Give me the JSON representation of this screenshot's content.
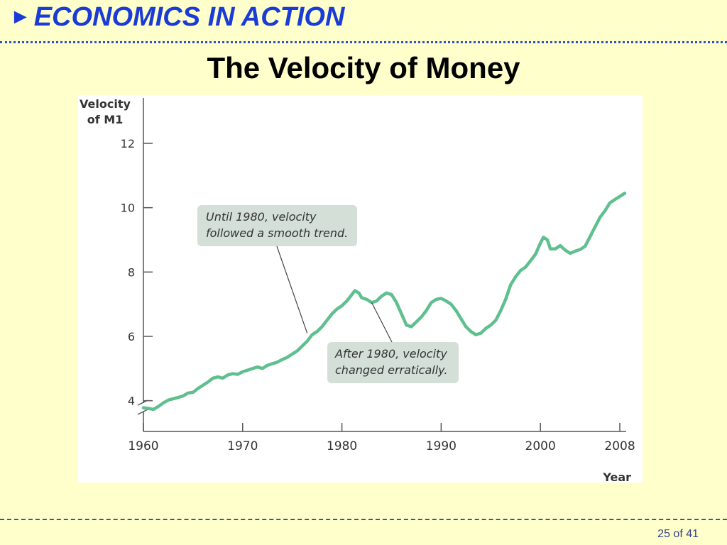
{
  "header": {
    "arrow": "►",
    "text": "ECONOMICS IN ACTION"
  },
  "slide_title": "The Velocity of Money",
  "page_indicator": "25 of 41",
  "colors": {
    "series": "#5fbf8f",
    "header_blue": "#1a3bd6",
    "callout_bg": "#d4dfd8",
    "background": "#ffffcc"
  },
  "chart_data": {
    "type": "line",
    "title": "",
    "ylabel_lines": [
      "Velocity",
      "of M1"
    ],
    "xlabel": "Year",
    "xlim": [
      1960,
      2008.5
    ],
    "ylim": [
      3,
      13.5
    ],
    "axis_break": true,
    "grid": false,
    "x_ticks": [
      1960,
      1970,
      1980,
      1990,
      2000,
      2008
    ],
    "x_tick_labels": [
      "1960",
      "1970",
      "1980",
      "1990",
      "2000",
      "2008"
    ],
    "y_ticks": [
      4,
      6,
      8,
      10,
      12
    ],
    "y_tick_labels": [
      "4",
      "6",
      "8",
      "10",
      "12"
    ],
    "series": [
      {
        "color": "#5fbf8f",
        "points": [
          [
            1960.0,
            3.78
          ],
          [
            1960.5,
            3.76
          ],
          [
            1961.0,
            3.73
          ],
          [
            1961.5,
            3.82
          ],
          [
            1962.0,
            3.93
          ],
          [
            1962.5,
            4.02
          ],
          [
            1963.0,
            4.06
          ],
          [
            1963.5,
            4.1
          ],
          [
            1964.0,
            4.15
          ],
          [
            1964.5,
            4.24
          ],
          [
            1965.0,
            4.26
          ],
          [
            1965.5,
            4.38
          ],
          [
            1966.0,
            4.48
          ],
          [
            1966.5,
            4.58
          ],
          [
            1967.0,
            4.7
          ],
          [
            1967.5,
            4.74
          ],
          [
            1968.0,
            4.7
          ],
          [
            1968.5,
            4.8
          ],
          [
            1969.0,
            4.84
          ],
          [
            1969.5,
            4.82
          ],
          [
            1970.0,
            4.9
          ],
          [
            1970.5,
            4.95
          ],
          [
            1971.0,
            5.0
          ],
          [
            1971.5,
            5.05
          ],
          [
            1972.0,
            5.0
          ],
          [
            1972.5,
            5.1
          ],
          [
            1973.0,
            5.15
          ],
          [
            1973.5,
            5.2
          ],
          [
            1974.0,
            5.28
          ],
          [
            1974.5,
            5.35
          ],
          [
            1975.0,
            5.45
          ],
          [
            1975.5,
            5.55
          ],
          [
            1976.0,
            5.7
          ],
          [
            1976.5,
            5.85
          ],
          [
            1977.0,
            6.05
          ],
          [
            1977.5,
            6.15
          ],
          [
            1978.0,
            6.3
          ],
          [
            1978.5,
            6.5
          ],
          [
            1979.0,
            6.7
          ],
          [
            1979.5,
            6.85
          ],
          [
            1980.0,
            6.95
          ],
          [
            1980.5,
            7.1
          ],
          [
            1981.0,
            7.3
          ],
          [
            1981.3,
            7.42
          ],
          [
            1981.7,
            7.35
          ],
          [
            1982.0,
            7.2
          ],
          [
            1982.5,
            7.15
          ],
          [
            1983.0,
            7.05
          ],
          [
            1983.5,
            7.1
          ],
          [
            1984.0,
            7.25
          ],
          [
            1984.5,
            7.35
          ],
          [
            1985.0,
            7.3
          ],
          [
            1985.5,
            7.05
          ],
          [
            1986.0,
            6.7
          ],
          [
            1986.5,
            6.35
          ],
          [
            1987.0,
            6.3
          ],
          [
            1987.5,
            6.45
          ],
          [
            1988.0,
            6.6
          ],
          [
            1988.5,
            6.8
          ],
          [
            1989.0,
            7.05
          ],
          [
            1989.5,
            7.15
          ],
          [
            1990.0,
            7.18
          ],
          [
            1990.5,
            7.1
          ],
          [
            1991.0,
            7.0
          ],
          [
            1991.5,
            6.8
          ],
          [
            1992.0,
            6.55
          ],
          [
            1992.5,
            6.3
          ],
          [
            1993.0,
            6.15
          ],
          [
            1993.5,
            6.05
          ],
          [
            1994.0,
            6.1
          ],
          [
            1994.5,
            6.25
          ],
          [
            1995.0,
            6.35
          ],
          [
            1995.5,
            6.5
          ],
          [
            1996.0,
            6.8
          ],
          [
            1996.5,
            7.15
          ],
          [
            1997.0,
            7.6
          ],
          [
            1997.5,
            7.85
          ],
          [
            1998.0,
            8.05
          ],
          [
            1998.5,
            8.15
          ],
          [
            1999.0,
            8.35
          ],
          [
            1999.5,
            8.55
          ],
          [
            2000.0,
            8.9
          ],
          [
            2000.3,
            9.08
          ],
          [
            2000.7,
            9.0
          ],
          [
            2001.0,
            8.72
          ],
          [
            2001.5,
            8.72
          ],
          [
            2002.0,
            8.82
          ],
          [
            2002.5,
            8.68
          ],
          [
            2003.0,
            8.58
          ],
          [
            2003.5,
            8.65
          ],
          [
            2004.0,
            8.7
          ],
          [
            2004.5,
            8.8
          ],
          [
            2005.0,
            9.1
          ],
          [
            2005.5,
            9.4
          ],
          [
            2006.0,
            9.7
          ],
          [
            2006.5,
            9.9
          ],
          [
            2007.0,
            10.15
          ],
          [
            2007.5,
            10.25
          ],
          [
            2008.0,
            10.35
          ],
          [
            2008.5,
            10.45
          ]
        ]
      }
    ],
    "annotations": [
      {
        "lines": [
          "Until 1980, velocity",
          "followed a smooth trend."
        ],
        "point_x": 1976.5,
        "point_y": 6.1
      },
      {
        "lines": [
          "After 1980, velocity",
          "changed erratically."
        ],
        "point_x": 1983.0,
        "point_y": 7.05
      }
    ]
  }
}
